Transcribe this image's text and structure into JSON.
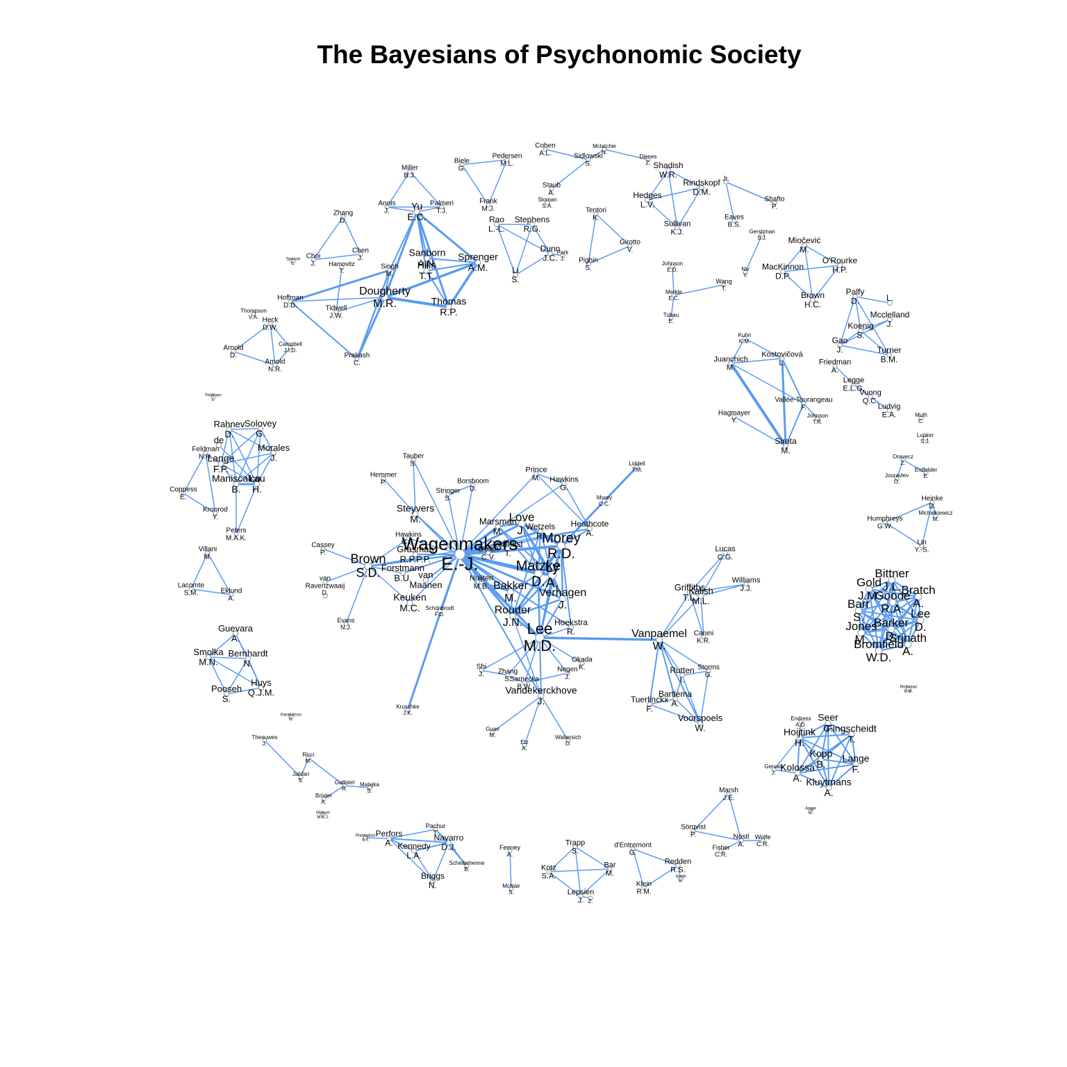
{
  "title": "The Bayesians of Psychonomic Society",
  "colors": {
    "edge": "#5a9bf0",
    "node_stroke": "#9aa3ad",
    "label": "#000000"
  },
  "nodes": [
    {
      "id": "cohen",
      "s": "Cohen",
      "i": "A.L."
    },
    {
      "id": "mclatchie",
      "s": "Mclatchie",
      "i": "N."
    },
    {
      "id": "sidlowski",
      "s": "Sidlowski",
      "i": "S."
    },
    {
      "id": "dienes",
      "s": "Dienes",
      "i": "Z."
    },
    {
      "id": "shadish",
      "s": "Shadish",
      "i": "W.R."
    },
    {
      "id": "pedersen",
      "s": "Pedersen",
      "i": "M.L."
    },
    {
      "id": "biele",
      "s": "Biele",
      "i": "G."
    },
    {
      "id": "frank",
      "s": "Frank",
      "i": "M.J."
    },
    {
      "id": "staub",
      "s": "Staub",
      "i": "A."
    },
    {
      "id": "sloman",
      "s": "Sloman",
      "i": "S.A."
    },
    {
      "id": "rindskopf",
      "s": "Rindskopf",
      "i": "D.M."
    },
    {
      "id": "hedges",
      "s": "Hedges",
      "i": "L.V."
    },
    {
      "id": "sullivan",
      "s": "Sullivan",
      "i": "K.J."
    },
    {
      "id": "jr",
      "s": "Jr.",
      "i": ""
    },
    {
      "id": "shafto",
      "s": "Shafto",
      "i": "P."
    },
    {
      "id": "eaves",
      "s": "Eaves",
      "i": "B.S."
    },
    {
      "id": "gershman",
      "s": "Gershman",
      "i": "S.J."
    },
    {
      "id": "niv",
      "s": "Niv",
      "i": "Y."
    },
    {
      "id": "miller",
      "s": "Miller",
      "i": "B.J."
    },
    {
      "id": "annis",
      "s": "Annis",
      "i": "J."
    },
    {
      "id": "yu",
      "s": "Yu",
      "i": "E.C."
    },
    {
      "id": "palmeri",
      "s": "Palmeri",
      "i": "T.J."
    },
    {
      "id": "sanborn",
      "s": "Sanborn",
      "i": "A.N."
    },
    {
      "id": "hills",
      "s": "Hills",
      "i": "T.T."
    },
    {
      "id": "sprenger",
      "s": "Sprenger",
      "i": "A.M."
    },
    {
      "id": "singh",
      "s": "Singh",
      "i": "M."
    },
    {
      "id": "dougherty",
      "s": "Dougherty",
      "i": "M.R."
    },
    {
      "id": "thomas",
      "s": "Thomas",
      "i": "R.P."
    },
    {
      "id": "hoffman",
      "s": "Hoffman",
      "i": "D.D."
    },
    {
      "id": "tidwell",
      "s": "Tidwell",
      "i": "J.W."
    },
    {
      "id": "prakash",
      "s": "Prakash",
      "i": "C."
    },
    {
      "id": "zhangd",
      "s": "Zhang",
      "i": "D."
    },
    {
      "id": "choi",
      "s": "Choi",
      "i": "J."
    },
    {
      "id": "chen",
      "s": "Chen",
      "i": "J."
    },
    {
      "id": "spence",
      "s": "Spence",
      "i": "C."
    },
    {
      "id": "hamovitz",
      "s": "Hamovitz",
      "i": "T."
    },
    {
      "id": "rao",
      "s": "Rao",
      "i": "L.-L."
    },
    {
      "id": "stephens",
      "s": "Stephens",
      "i": "R.G."
    },
    {
      "id": "dunn",
      "s": "Dunn",
      "i": "J.C."
    },
    {
      "id": "park",
      "s": "Park",
      "i": "J."
    },
    {
      "id": "li",
      "s": "Li",
      "i": "S."
    },
    {
      "id": "tentori",
      "s": "Tentori",
      "i": "K."
    },
    {
      "id": "girotto",
      "s": "Girotto",
      "i": "V."
    },
    {
      "id": "pighin",
      "s": "Pighin",
      "i": "S."
    },
    {
      "id": "johnsoned",
      "s": "Johnson",
      "i": "E.D."
    },
    {
      "id": "merkle",
      "s": "Merkle",
      "i": "E.C."
    },
    {
      "id": "wang",
      "s": "Wang",
      "i": "T."
    },
    {
      "id": "tubau",
      "s": "Tubau",
      "i": "E."
    },
    {
      "id": "miocevic",
      "s": "Miočević",
      "i": "M."
    },
    {
      "id": "mackinnon",
      "s": "MacKinnon",
      "i": "D.P."
    },
    {
      "id": "orourke",
      "s": "O'Rourke",
      "i": "H.P."
    },
    {
      "id": "brownhc",
      "s": "Brown",
      "i": "H.C."
    },
    {
      "id": "thompson",
      "s": "Thompson",
      "i": "V.A."
    },
    {
      "id": "heck",
      "s": "Heck",
      "i": "D.W."
    },
    {
      "id": "arnoldd",
      "s": "Arnold",
      "i": "D."
    },
    {
      "id": "campbell",
      "s": "Campbell",
      "i": "J.I.D."
    },
    {
      "id": "arnoldnr",
      "s": "Arnold",
      "i": "N.R."
    },
    {
      "id": "palfy",
      "s": "Palfy",
      "i": "D."
    },
    {
      "id": "ll",
      "s": "L.",
      "i": ""
    },
    {
      "id": "mcclelland",
      "s": "Mcclelland",
      "i": "J."
    },
    {
      "id": "koenig",
      "s": "Koenig",
      "i": "S."
    },
    {
      "id": "gao",
      "s": "Gao",
      "i": "J."
    },
    {
      "id": "turner",
      "s": "Turner",
      "i": "B.M."
    },
    {
      "id": "friedman",
      "s": "Friedman",
      "i": "A."
    },
    {
      "id": "legge",
      "s": "Legge",
      "i": "E.L.G."
    },
    {
      "id": "vuong",
      "s": "Vuong",
      "i": "Q.C."
    },
    {
      "id": "ludvig",
      "s": "Ludvig",
      "i": "E.A."
    },
    {
      "id": "kuhn",
      "s": "Kuhn",
      "i": "K.M."
    },
    {
      "id": "juanchich",
      "s": "Juanchich",
      "i": "M."
    },
    {
      "id": "kostovicova",
      "s": "Kostovičová",
      "i": "L."
    },
    {
      "id": "vallee",
      "s": "Vallée-Tourangeau",
      "i": "F."
    },
    {
      "id": "johnsontr",
      "s": "Johnson",
      "i": "T.R."
    },
    {
      "id": "hagmayer",
      "s": "Hagmayer",
      "i": "Y."
    },
    {
      "id": "sirota",
      "s": "Sirota",
      "i": "M."
    },
    {
      "id": "muth",
      "s": "Muth",
      "i": "C."
    },
    {
      "id": "lupker",
      "s": "Lupker",
      "i": "S.J."
    },
    {
      "id": "oravecz",
      "s": "Oravecz",
      "i": "Z."
    },
    {
      "id": "erdfelder",
      "s": "Erdfelder",
      "i": "E."
    },
    {
      "id": "jouravlev",
      "s": "Jouravlev",
      "i": "O."
    },
    {
      "id": "heinke",
      "s": "Heinke",
      "i": "D."
    },
    {
      "id": "humphreys",
      "s": "Humphreys",
      "i": "G.W."
    },
    {
      "id": "michalkiewicz",
      "s": "Michalkiewicz",
      "i": "M."
    },
    {
      "id": "lin",
      "s": "Lin",
      "i": "Y.-S."
    },
    {
      "id": "feldmansm",
      "s": "Feldman",
      "i": "J."
    },
    {
      "id": "rahnev",
      "s": "Rahnev",
      "i": "D."
    },
    {
      "id": "solovey",
      "s": "Solovey",
      "i": "G."
    },
    {
      "id": "de",
      "s": "de",
      "i": ""
    },
    {
      "id": "feldmann",
      "s": "Feldman",
      "i": "N.H."
    },
    {
      "id": "lange",
      "s": "Lange",
      "i": "F.P."
    },
    {
      "id": "morales",
      "s": "Morales",
      "i": "J."
    },
    {
      "id": "maniscalco",
      "s": "Maniscalco",
      "i": "B."
    },
    {
      "id": "lau",
      "s": "Lau",
      "i": "H."
    },
    {
      "id": "coppess",
      "s": "Coppess",
      "i": "E."
    },
    {
      "id": "kronrod",
      "s": "Kronrod",
      "i": "Y."
    },
    {
      "id": "peters",
      "s": "Peters",
      "i": "M.A.K."
    },
    {
      "id": "villani",
      "s": "Villani",
      "i": "M."
    },
    {
      "id": "lacomte",
      "s": "Lacomte",
      "i": "S.M."
    },
    {
      "id": "eklund",
      "s": "Eklund",
      "i": "A."
    },
    {
      "id": "guevara",
      "s": "Guevara",
      "i": "A."
    },
    {
      "id": "smolka",
      "s": "Smolka",
      "i": "M.N."
    },
    {
      "id": "bernhardt",
      "s": "Bernhardt",
      "i": "N."
    },
    {
      "id": "huys",
      "s": "Huys",
      "i": "Q.J.M."
    },
    {
      "id": "pooseh",
      "s": "Pooseh",
      "i": "S."
    },
    {
      "id": "karakatsos",
      "s": "Karakatsos",
      "i": "G."
    },
    {
      "id": "theeuwes",
      "s": "Theeuwes",
      "i": "J."
    },
    {
      "id": "ricci",
      "s": "Ricci",
      "i": "M."
    },
    {
      "id": "jahfari",
      "s": "Jahfari",
      "i": "S."
    },
    {
      "id": "gallistel",
      "s": "Gallistel",
      "i": "R."
    },
    {
      "id": "matejka",
      "s": "Matejka",
      "i": "S."
    },
    {
      "id": "broder",
      "s": "Bröder",
      "i": "A."
    },
    {
      "id": "matson",
      "s": "Matson",
      "i": "M.E.J."
    },
    {
      "id": "tauber",
      "s": "Tauber",
      "i": "S."
    },
    {
      "id": "hemmer",
      "s": "Hemmer",
      "i": "P."
    },
    {
      "id": "borsboom",
      "s": "Borsboom",
      "i": "D."
    },
    {
      "id": "stringer",
      "s": "Stringer",
      "i": "S."
    },
    {
      "id": "steyvers",
      "s": "Steyvers",
      "i": "M."
    },
    {
      "id": "prince",
      "s": "Prince",
      "i": "M."
    },
    {
      "id": "hawkinsg",
      "s": "Hawkins",
      "i": "G."
    },
    {
      "id": "liddell",
      "s": "Liddell",
      "i": "T.M."
    },
    {
      "id": "moreycc",
      "s": "Morey",
      "i": "C.C."
    },
    {
      "id": "heathcote",
      "s": "Heathcote",
      "i": "A."
    },
    {
      "id": "marsman",
      "s": "Marsman",
      "i": "M."
    },
    {
      "id": "love",
      "s": "Love",
      "i": "J."
    },
    {
      "id": "wetzels",
      "s": "Wetzels",
      "i": "R."
    },
    {
      "id": "cassey",
      "s": "Cassey",
      "i": "P."
    },
    {
      "id": "brownsd",
      "s": "Brown",
      "i": "S.D."
    },
    {
      "id": "hawkinsgm",
      "s": "Hawkins",
      "i": "G.E."
    },
    {
      "id": "grasman",
      "s": "Grasman",
      "i": "R.P.P.P."
    },
    {
      "id": "wagenmakers",
      "s": "Wagenmakers",
      "i": "E.-J."
    },
    {
      "id": "dolan",
      "s": "Dolan",
      "i": "C.V."
    },
    {
      "id": "verhulst",
      "s": "Verhulst",
      "i": "T."
    },
    {
      "id": "moreyrd",
      "s": "Morey",
      "i": "R.D."
    },
    {
      "id": "forstmann",
      "s": "Forstmann",
      "i": "B.U."
    },
    {
      "id": "vanmaanen",
      "s": "van",
      "i": "Maanen"
    },
    {
      "id": "vanravenzwaaij",
      "s": "van",
      "i": "Ravenzwaaij"
    },
    {
      "id": "ravenzd",
      "s": "D.",
      "i": ""
    },
    {
      "id": "nuijten",
      "s": "Nuijten",
      "i": "M.B."
    },
    {
      "id": "matzke",
      "s": "Matzke",
      "i": "D."
    },
    {
      "id": "ly",
      "s": "Ly",
      "i": "A."
    },
    {
      "id": "bakker",
      "s": "Bakker",
      "i": "M."
    },
    {
      "id": "keuken",
      "s": "Keuken",
      "i": "M.C."
    },
    {
      "id": "schonbrodt",
      "s": "Schönbrodt",
      "i": "F.D."
    },
    {
      "id": "verhagen",
      "s": "Verhagen",
      "i": "J."
    },
    {
      "id": "rouder",
      "s": "Rouder",
      "i": "J.N."
    },
    {
      "id": "leemd",
      "s": "Lee",
      "i": "M.D."
    },
    {
      "id": "hoekstra",
      "s": "Hoekstra",
      "i": "R."
    },
    {
      "id": "evans",
      "s": "Evans",
      "i": "N.J."
    },
    {
      "id": "shi",
      "s": "Shi",
      "i": "J."
    },
    {
      "id": "zhangs",
      "s": "Zhang",
      "i": "S."
    },
    {
      "id": "sarnecka",
      "s": "Sarnecka",
      "i": "B.W."
    },
    {
      "id": "negen",
      "s": "Negen",
      "i": "J."
    },
    {
      "id": "okada",
      "s": "Okada",
      "i": "K."
    },
    {
      "id": "vandekerckhove",
      "s": "Vandekerckhove",
      "i": "J."
    },
    {
      "id": "kruschke",
      "s": "Kruschke",
      "i": "J.K."
    },
    {
      "id": "guan",
      "s": "Guan",
      "i": "M."
    },
    {
      "id": "etz",
      "s": "Etz",
      "i": "A."
    },
    {
      "id": "wabersich",
      "s": "Wabersich",
      "i": "D."
    },
    {
      "id": "lucas",
      "s": "Lucas",
      "i": "C.G."
    },
    {
      "id": "griffiths",
      "s": "Griffiths",
      "i": "T.L."
    },
    {
      "id": "kalish",
      "s": "Kalish",
      "i": "M.L."
    },
    {
      "id": "williams",
      "s": "Williams",
      "i": "J.J."
    },
    {
      "id": "canini",
      "s": "Canini",
      "i": "K.R."
    },
    {
      "id": "vanpaemel",
      "s": "Vanpaemel",
      "i": "W."
    },
    {
      "id": "storms",
      "s": "Storms",
      "i": "G."
    },
    {
      "id": "rutten",
      "s": "Rutten",
      "i": "I."
    },
    {
      "id": "bartlema",
      "s": "Bartlema",
      "i": "A."
    },
    {
      "id": "tuerlinckx",
      "s": "Tuerlinckx",
      "i": "F."
    },
    {
      "id": "voorspoels",
      "s": "Voorspoels",
      "i": "W."
    },
    {
      "id": "bittner",
      "s": "Bittner",
      "i": "J.L."
    },
    {
      "id": "gold",
      "s": "Gold",
      "i": "J.M."
    },
    {
      "id": "bratch",
      "s": "Bratch",
      "i": "A."
    },
    {
      "id": "goode",
      "s": "Goode",
      "i": "R.A."
    },
    {
      "id": "barr",
      "s": "Barr",
      "i": "S."
    },
    {
      "id": "leed",
      "s": "Lee",
      "i": "D."
    },
    {
      "id": "jones",
      "s": "Jones",
      "i": "M."
    },
    {
      "id": "barker",
      "s": "Barker",
      "i": "D."
    },
    {
      "id": "srinath",
      "s": "Srinath",
      "i": "A."
    },
    {
      "id": "bromfield",
      "s": "Bromfield",
      "i": "W.D."
    },
    {
      "id": "rothman",
      "s": "Rothman",
      "i": "B.M."
    },
    {
      "id": "endress",
      "s": "Endress",
      "i": "A.D."
    },
    {
      "id": "seer",
      "s": "Seer",
      "i": "C."
    },
    {
      "id": "hoijtink",
      "s": "Hoijtink",
      "i": "H."
    },
    {
      "id": "fingscheidt",
      "s": "Fingscheidt",
      "i": "T."
    },
    {
      "id": "kopp",
      "s": "Kopp",
      "i": "B."
    },
    {
      "id": "langef",
      "s": "Lange",
      "i": "F."
    },
    {
      "id": "gervais",
      "s": "Gervais",
      "i": "J."
    },
    {
      "id": "kolossa",
      "s": "Kolossa",
      "i": "A."
    },
    {
      "id": "kluytmans",
      "s": "Kluytmans",
      "i": "A."
    },
    {
      "id": "anger",
      "s": "Anger",
      "i": "G."
    },
    {
      "id": "marsh",
      "s": "Marsh",
      "i": "J.E."
    },
    {
      "id": "sorqvist",
      "s": "Sörqvist",
      "i": "P."
    },
    {
      "id": "nostl",
      "s": "Nöstl",
      "i": "A."
    },
    {
      "id": "wolfe",
      "s": "Wolfe",
      "i": "C.R."
    },
    {
      "id": "fisher",
      "s": "Fisher",
      "i": "C.R."
    },
    {
      "id": "piantadosi",
      "s": "Piantadosi",
      "i": "S.T."
    },
    {
      "id": "perfors",
      "s": "Perfors",
      "i": "A."
    },
    {
      "id": "pachur",
      "s": "Pachur",
      "i": "T."
    },
    {
      "id": "navarro",
      "s": "Navarro",
      "i": "D.J."
    },
    {
      "id": "kennedy",
      "s": "Kennedy",
      "i": "L.A."
    },
    {
      "id": "scheibehenne",
      "s": "Scheibehenne",
      "i": "B."
    },
    {
      "id": "briggs",
      "s": "Briggs",
      "i": "N."
    },
    {
      "id": "feeney",
      "s": "Feeney",
      "i": "A."
    },
    {
      "id": "mcnair",
      "s": "McNair",
      "i": "S."
    },
    {
      "id": "trapp",
      "s": "Trapp",
      "i": "S."
    },
    {
      "id": "kotz",
      "s": "Kotz",
      "i": "S.A."
    },
    {
      "id": "bar",
      "s": "Bar",
      "i": "M."
    },
    {
      "id": "lepsien",
      "s": "Lepsien",
      "i": "J."
    },
    {
      "id": "lepz",
      "s": "",
      "i": "Z."
    },
    {
      "id": "dentremont",
      "s": "d'Entremont",
      "i": "G."
    },
    {
      "id": "redden",
      "s": "Redden",
      "i": "R.S."
    },
    {
      "id": "klein",
      "s": "Klein",
      "i": "R.M."
    },
    {
      "id": "smith",
      "s": "Smith",
      "i": "R."
    }
  ]
}
